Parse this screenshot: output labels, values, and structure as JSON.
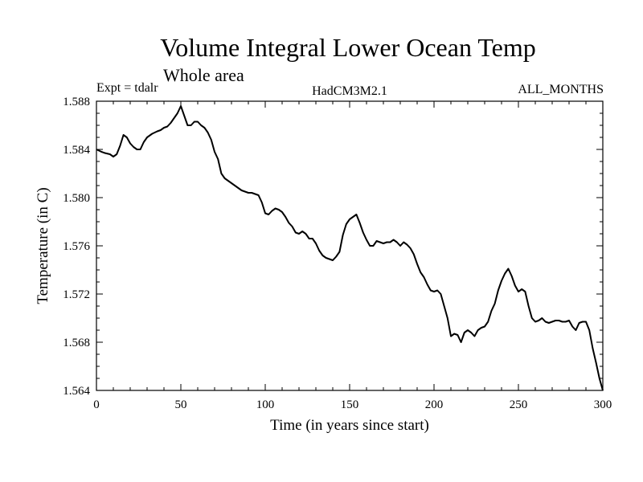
{
  "chart_data": {
    "type": "line",
    "title": "Volume Integral Lower Ocean Temp",
    "subtitle": "Whole area",
    "annotations": {
      "left": "Expt = tdalr",
      "center": "HadCM3M2.1",
      "right": "ALL_MONTHS"
    },
    "xlabel": "Time (in years since start)",
    "ylabel": "Temperature (in C)",
    "xlim": [
      0,
      300
    ],
    "ylim": [
      1.564,
      1.588
    ],
    "xticks": [
      0,
      50,
      100,
      150,
      200,
      250,
      300
    ],
    "xtick_labels": [
      "0",
      "50",
      "100",
      "150",
      "200",
      "250",
      "300"
    ],
    "yticks": [
      1.564,
      1.568,
      1.572,
      1.576,
      1.58,
      1.584,
      1.588
    ],
    "ytick_labels": [
      "1.564",
      "1.568",
      "1.572",
      "1.576",
      "1.580",
      "1.584",
      "1.588"
    ],
    "grid": false,
    "series": [
      {
        "name": "Volume integral lower ocean temperature",
        "color": "#000000",
        "x": [
          0,
          3,
          5,
          8,
          10,
          12,
          14,
          16,
          18,
          20,
          22,
          24,
          26,
          28,
          30,
          33,
          36,
          38,
          40,
          42,
          44,
          46,
          48,
          50,
          52,
          54,
          56,
          58,
          60,
          62,
          64,
          66,
          68,
          70,
          72,
          74,
          76,
          78,
          80,
          82,
          84,
          86,
          88,
          90,
          92,
          94,
          96,
          98,
          100,
          102,
          104,
          106,
          108,
          110,
          112,
          114,
          116,
          118,
          120,
          122,
          124,
          126,
          128,
          130,
          132,
          134,
          136,
          138,
          140,
          142,
          144,
          146,
          148,
          150,
          152,
          154,
          156,
          158,
          160,
          162,
          164,
          166,
          168,
          170,
          172,
          174,
          176,
          178,
          180,
          182,
          184,
          186,
          188,
          190,
          192,
          194,
          196,
          198,
          200,
          202,
          204,
          206,
          208,
          210,
          212,
          214,
          216,
          218,
          220,
          222,
          224,
          226,
          228,
          230,
          232,
          234,
          236,
          238,
          240,
          242,
          244,
          246,
          248,
          250,
          252,
          254,
          256,
          258,
          260,
          262,
          264,
          266,
          268,
          270,
          272,
          274,
          276,
          278,
          280,
          282,
          284,
          286,
          288,
          290,
          292,
          294,
          296,
          298,
          300
        ],
        "y": [
          1.584,
          1.5838,
          1.5837,
          1.5836,
          1.5834,
          1.5836,
          1.5843,
          1.5852,
          1.585,
          1.5845,
          1.5842,
          1.584,
          1.584,
          1.5846,
          1.585,
          1.5853,
          1.5855,
          1.5856,
          1.5858,
          1.5859,
          1.5862,
          1.5866,
          1.587,
          1.5876,
          1.5868,
          1.586,
          1.586,
          1.5863,
          1.5863,
          1.586,
          1.5858,
          1.5854,
          1.5848,
          1.5838,
          1.5832,
          1.582,
          1.5816,
          1.5814,
          1.5812,
          1.581,
          1.5808,
          1.5806,
          1.5805,
          1.5804,
          1.5804,
          1.5803,
          1.5802,
          1.5796,
          1.5787,
          1.5786,
          1.5789,
          1.5791,
          1.579,
          1.5788,
          1.5784,
          1.5779,
          1.5776,
          1.5771,
          1.577,
          1.5772,
          1.577,
          1.5766,
          1.5766,
          1.5762,
          1.5756,
          1.5752,
          1.575,
          1.5749,
          1.5748,
          1.5751,
          1.5755,
          1.5769,
          1.5778,
          1.5782,
          1.5784,
          1.5786,
          1.5779,
          1.5771,
          1.5765,
          1.576,
          1.576,
          1.5764,
          1.5763,
          1.5762,
          1.5763,
          1.5763,
          1.5765,
          1.5763,
          1.576,
          1.5763,
          1.5761,
          1.5758,
          1.5753,
          1.5745,
          1.5738,
          1.5734,
          1.5728,
          1.5723,
          1.5722,
          1.5723,
          1.572,
          1.571,
          1.57,
          1.5685,
          1.5687,
          1.5686,
          1.568,
          1.5688,
          1.569,
          1.5688,
          1.5685,
          1.569,
          1.5692,
          1.5693,
          1.5697,
          1.5706,
          1.5712,
          1.5723,
          1.5731,
          1.5737,
          1.5741,
          1.5735,
          1.5727,
          1.5722,
          1.5724,
          1.5722,
          1.571,
          1.57,
          1.5697,
          1.5698,
          1.57,
          1.5697,
          1.5696,
          1.5697,
          1.5698,
          1.5698,
          1.5697,
          1.5697,
          1.5698,
          1.5693,
          1.569,
          1.5696,
          1.5697,
          1.5697,
          1.569,
          1.5675,
          1.5663,
          1.565,
          1.564
        ]
      }
    ]
  }
}
